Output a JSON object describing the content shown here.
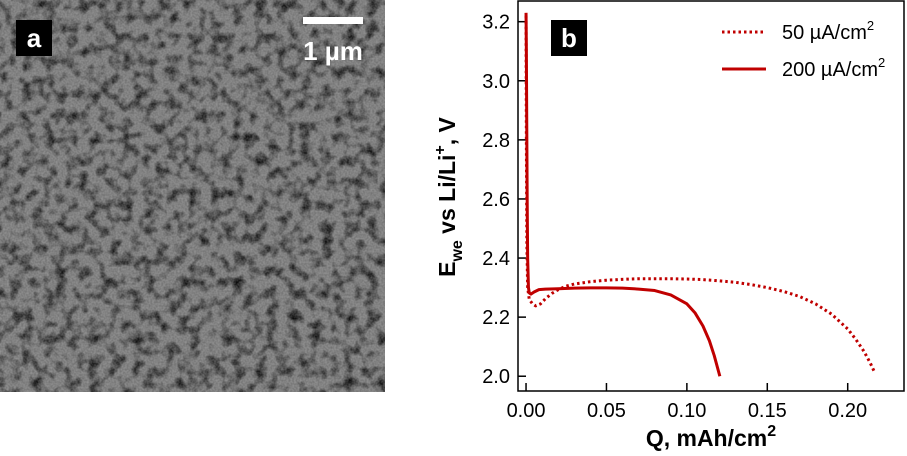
{
  "panels": {
    "a": {
      "badge": "a",
      "scale_bar_label": "1 µm",
      "image_description_name": "sem-micrograph"
    },
    "b": {
      "badge": "b"
    }
  },
  "colors": {
    "series": "#c00000",
    "badge_bg": "#000000",
    "badge_fg": "#ffffff",
    "axis": "#000000"
  },
  "chart_data": {
    "type": "line",
    "title": "",
    "xlabel_main": "Q, mAh/cm",
    "xlabel_sup": "2",
    "ylabel_parts": {
      "E": "E",
      "we_sub": "we",
      "mid": " vs  Li/Li",
      "plus_sup": "+",
      "end": ", V"
    },
    "xlim": [
      -0.005,
      0.235
    ],
    "ylim": [
      1.95,
      3.27
    ],
    "xticks": [
      0.0,
      0.05,
      0.1,
      0.15,
      0.2
    ],
    "xtick_labels": [
      "0.00",
      "0.05",
      "0.10",
      "0.15",
      "0.20"
    ],
    "yticks": [
      2.0,
      2.2,
      2.4,
      2.6,
      2.8,
      3.0,
      3.2
    ],
    "ytick_labels": [
      "2.0",
      "2.2",
      "2.4",
      "2.6",
      "2.8",
      "3.0",
      "3.2"
    ],
    "grid": false,
    "legend_position": "top-right",
    "series": [
      {
        "name": "50 µA/cm",
        "name_sup": "2",
        "style": "dotted",
        "x": [
          0.0,
          0.0002,
          0.0005,
          0.001,
          0.002,
          0.004,
          0.006,
          0.009,
          0.012,
          0.016,
          0.02,
          0.025,
          0.03,
          0.04,
          0.05,
          0.06,
          0.07,
          0.08,
          0.09,
          0.1,
          0.11,
          0.12,
          0.13,
          0.14,
          0.15,
          0.16,
          0.17,
          0.18,
          0.19,
          0.2,
          0.205,
          0.21,
          0.214,
          0.217
        ],
        "y": [
          3.22,
          2.8,
          2.45,
          2.3,
          2.26,
          2.245,
          2.238,
          2.245,
          2.262,
          2.28,
          2.293,
          2.305,
          2.312,
          2.32,
          2.325,
          2.328,
          2.33,
          2.33,
          2.33,
          2.329,
          2.327,
          2.323,
          2.318,
          2.31,
          2.3,
          2.287,
          2.27,
          2.245,
          2.21,
          2.16,
          2.125,
          2.085,
          2.045,
          2.01
        ]
      },
      {
        "name": "200 µA/cm",
        "name_sup": "2",
        "style": "solid",
        "x": [
          0.0,
          0.0002,
          0.0004,
          0.0007,
          0.001,
          0.0015,
          0.002,
          0.003,
          0.005,
          0.008,
          0.012,
          0.02,
          0.03,
          0.04,
          0.05,
          0.06,
          0.07,
          0.08,
          0.09,
          0.1,
          0.105,
          0.11,
          0.114,
          0.117,
          0.119,
          0.1205
        ],
        "y": [
          3.23,
          3.1,
          2.9,
          2.6,
          2.4,
          2.3,
          2.282,
          2.278,
          2.285,
          2.293,
          2.295,
          2.296,
          2.298,
          2.299,
          2.299,
          2.298,
          2.295,
          2.29,
          2.275,
          2.245,
          2.215,
          2.17,
          2.12,
          2.07,
          2.03,
          2.0
        ]
      }
    ]
  }
}
